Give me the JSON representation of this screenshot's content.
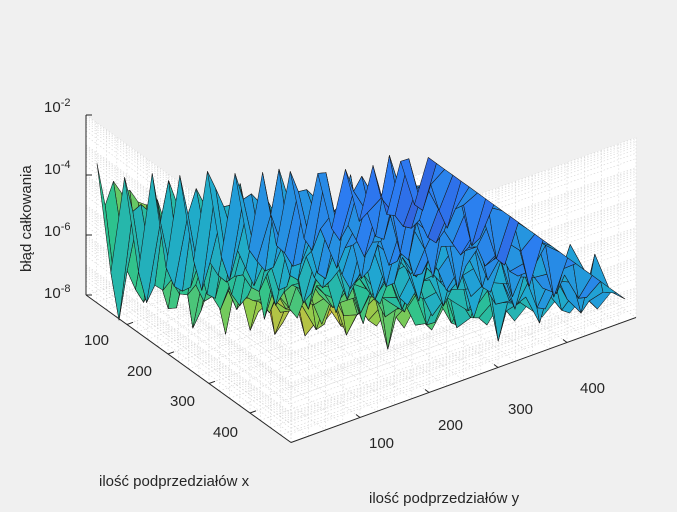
{
  "chart_data": {
    "type": "surface",
    "title": "",
    "xlabel": "ilość podprzedziałów x",
    "ylabel": "ilość podprzedziałów y",
    "zlabel": "błąd całkowania",
    "zscale": "log",
    "xlim": [
      0,
      500
    ],
    "ylim": [
      0,
      500
    ],
    "zlim": [
      1e-08,
      0.01
    ],
    "x_ticks": [
      "100",
      "200",
      "300",
      "400"
    ],
    "y_ticks": [
      "100",
      "200",
      "300",
      "400"
    ],
    "z_ticks": [
      {
        "base": "10",
        "exp": "-2"
      },
      {
        "base": "10",
        "exp": "-4"
      },
      {
        "base": "10",
        "exp": "-6"
      },
      {
        "base": "10",
        "exp": "-8"
      }
    ],
    "grid": true,
    "colormap": "parula",
    "colors": [
      "#3e26a8",
      "#2c7bf2",
      "#1fa8d0",
      "#2cc28f",
      "#89cc4d",
      "#e5b93c",
      "#f9d829",
      "#f9fb0e"
    ],
    "grid_values": {
      "x": [
        10,
        30,
        50,
        70,
        90,
        110,
        130,
        150,
        170,
        190,
        210,
        230,
        250,
        270,
        290,
        310,
        330,
        350,
        370,
        390,
        410,
        430,
        450,
        470,
        490
      ],
      "y": [
        10,
        30,
        50,
        70,
        90,
        110,
        130,
        150,
        170,
        190,
        210,
        230,
        250,
        270,
        290,
        310,
        330,
        350,
        370,
        390,
        410,
        430,
        450,
        470,
        490
      ],
      "row_y10_log10": [
        -3.6,
        -4.8,
        -3.8,
        -4.0,
        -3.7,
        -3.9,
        -3.8,
        -3.6,
        -4.0,
        -3.5,
        -4.2,
        -3.4,
        -3.7,
        -3.3,
        -3.6,
        -3.2,
        -3.5,
        -3.1,
        -3.3,
        -3.0,
        -3.2,
        -2.8,
        -3.0,
        -2.7,
        -2.7
      ],
      "row_x490_log10": [
        -2.7,
        -4.0,
        -4.6,
        -4.2,
        -5.1,
        -4.4,
        -5.3,
        -4.8,
        -5.7,
        -5.0,
        -6.1,
        -5.4,
        -6.3,
        -5.9,
        -6.6,
        -6.0,
        -6.8,
        -6.4,
        -7.0,
        -6.6,
        -7.2,
        -6.8,
        -7.4,
        -7.0,
        -7.4
      ],
      "row_x10_log10": [
        -3.6,
        -7.4,
        -4.4,
        -7.7,
        -4.6,
        -7.9,
        -5.0,
        -8.0,
        -5.2,
        -8.2,
        -5.6,
        -8.3,
        -5.9,
        -8.5,
        -6.2,
        -8.6,
        -6.6,
        -8.6,
        -6.8,
        -8.7,
        -7.0,
        -8.8,
        -7.2,
        -8.8,
        -7.4
      ]
    }
  }
}
